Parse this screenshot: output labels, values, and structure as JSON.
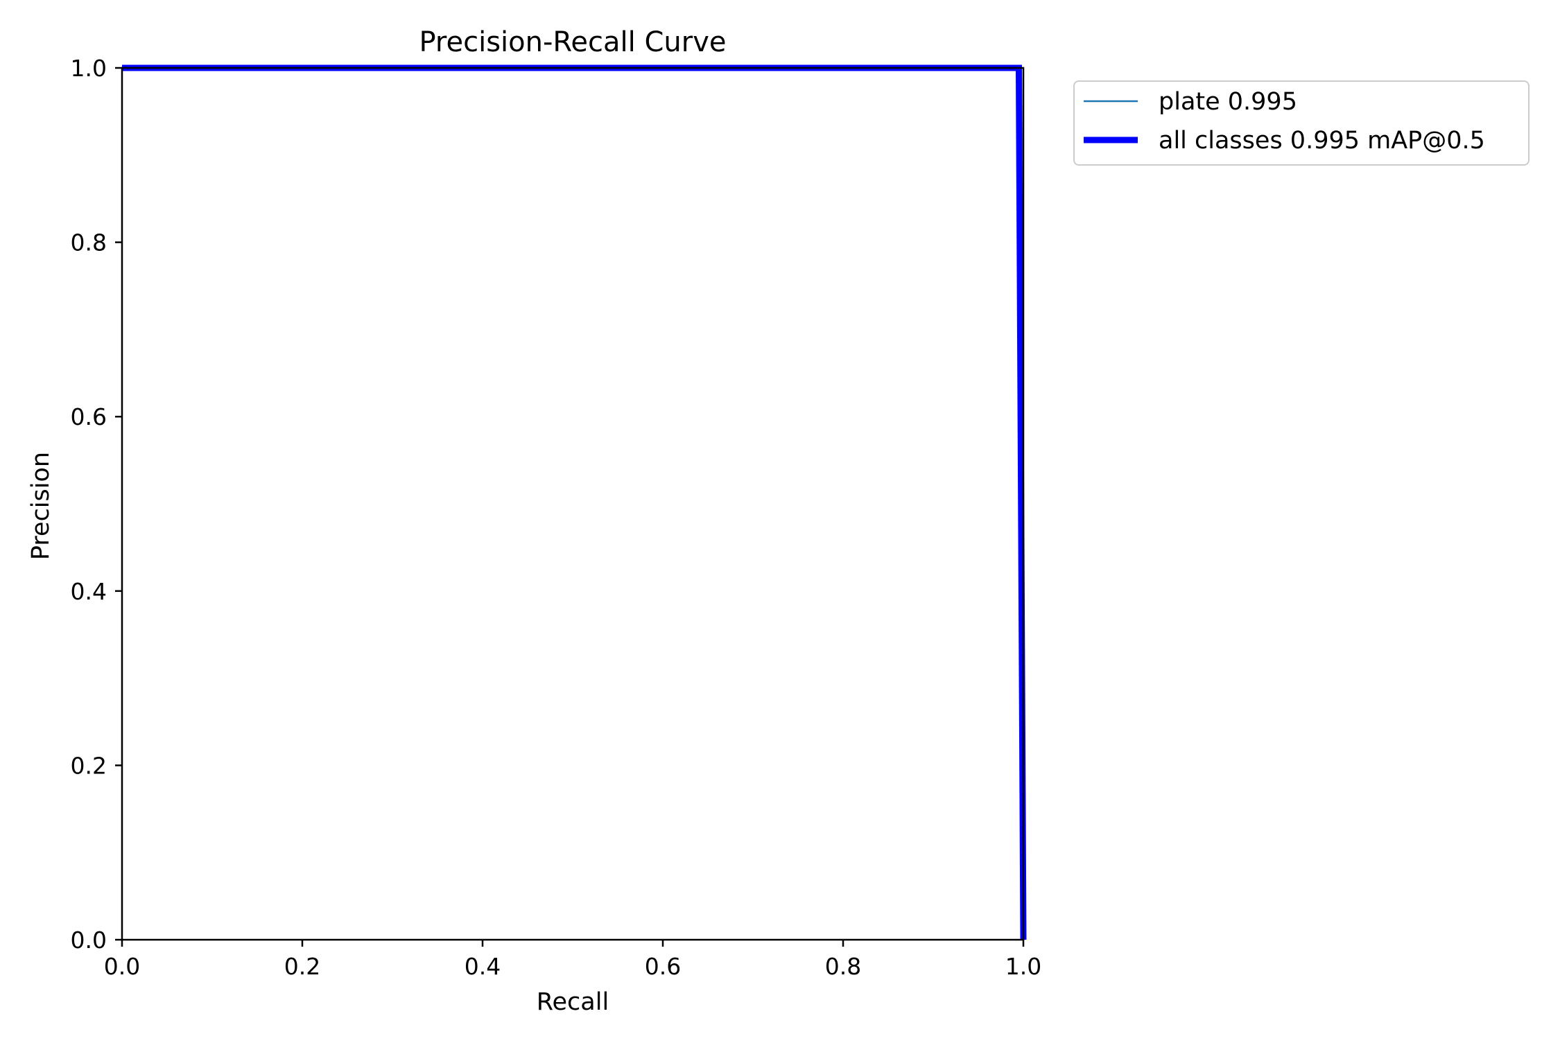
{
  "chart_data": {
    "type": "line",
    "title": "Precision-Recall Curve",
    "xlabel": "Recall",
    "ylabel": "Precision",
    "xlim": [
      0,
      1
    ],
    "ylim": [
      0,
      1
    ],
    "xticks": [
      "0.0",
      "0.2",
      "0.4",
      "0.6",
      "0.8",
      "1.0"
    ],
    "yticks": [
      "0.0",
      "0.2",
      "0.4",
      "0.6",
      "0.8",
      "1.0"
    ],
    "grid": false,
    "legend_position": "outside-top-right",
    "series": [
      {
        "name": "plate 0.995",
        "color": "#1f77b4",
        "line_width": "thin",
        "x": [
          0.0,
          0.995,
          0.997,
          1.0
        ],
        "y": [
          1.0,
          1.0,
          0.6,
          0.0
        ]
      },
      {
        "name": "all classes 0.995 mAP@0.5",
        "color": "#0000ff",
        "line_width": "thick",
        "x": [
          0.0,
          0.995,
          0.997,
          1.0
        ],
        "y": [
          1.0,
          1.0,
          0.6,
          0.0
        ]
      }
    ]
  }
}
